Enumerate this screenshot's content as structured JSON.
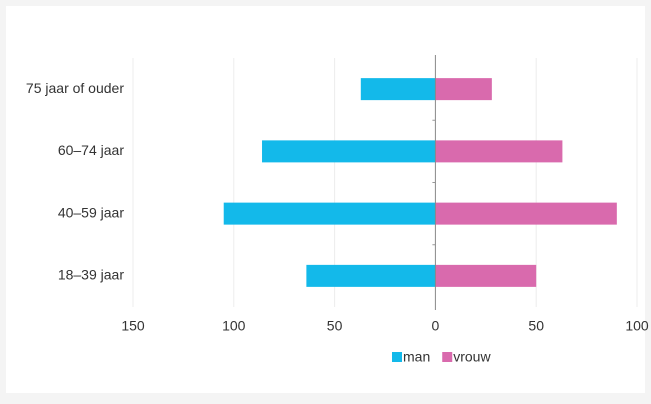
{
  "chart_data": {
    "type": "bar",
    "orientation": "horizontal",
    "categories": [
      "75 jaar of ouder",
      "60–74 jaar",
      "40–59 jaar",
      "18–39 jaar"
    ],
    "series": [
      {
        "name": "man",
        "color": "#13b9ea",
        "values": [
          -37,
          -86,
          -105,
          -64
        ]
      },
      {
        "name": "vrouw",
        "color": "#d96aad",
        "values": [
          28,
          63,
          90,
          50
        ]
      }
    ],
    "xlim": [
      -150,
      100
    ],
    "xticks": [
      {
        "value": -150,
        "label": "150"
      },
      {
        "value": -100,
        "label": "100"
      },
      {
        "value": -50,
        "label": "50"
      },
      0,
      50,
      100
    ],
    "grid": true,
    "legend": "bottom"
  }
}
